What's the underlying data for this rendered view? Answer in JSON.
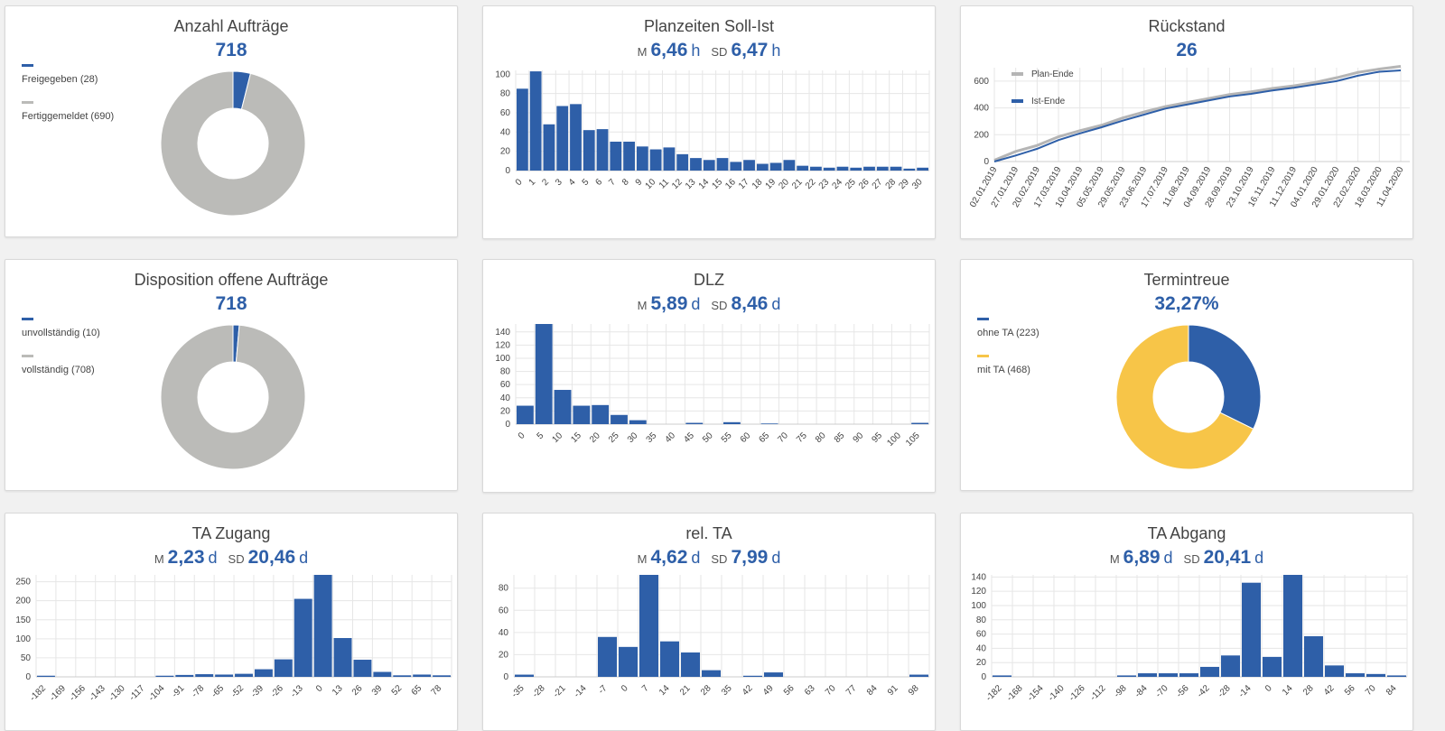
{
  "colors": {
    "blue": "#2e5fa8",
    "grey": "#bbbbb8",
    "grey_line": "#b5b5b5",
    "yellow": "#f7c548"
  },
  "cards": {
    "anzahl": {
      "title": "Anzahl Aufträge",
      "value": "718"
    },
    "planzeiten": {
      "title": "Planzeiten Soll-Ist",
      "m_label": "M",
      "m_value": "6,46",
      "m_unit": "h",
      "sd_label": "SD",
      "sd_value": "6,47",
      "sd_unit": "h"
    },
    "rueckstand": {
      "title": "Rückstand",
      "value": "26"
    },
    "disposition": {
      "title": "Disposition offene Aufträge",
      "value": "718"
    },
    "dlz": {
      "title": "DLZ",
      "m_label": "M",
      "m_value": "5,89",
      "m_unit": "d",
      "sd_label": "SD",
      "sd_value": "8,46",
      "sd_unit": "d"
    },
    "termintreue": {
      "title": "Termintreue",
      "value": "32,27%"
    },
    "ta_zugang": {
      "title": "TA Zugang",
      "m_label": "M",
      "m_value": "2,23",
      "m_unit": "d",
      "sd_label": "SD",
      "sd_value": "20,46",
      "sd_unit": "d"
    },
    "rel_ta": {
      "title": "rel. TA",
      "m_label": "M",
      "m_value": "4,62",
      "m_unit": "d",
      "sd_label": "SD",
      "sd_value": "7,99",
      "sd_unit": "d"
    },
    "ta_abgang": {
      "title": "TA Abgang",
      "m_label": "M",
      "m_value": "6,89",
      "m_unit": "d",
      "sd_label": "SD",
      "sd_value": "20,41",
      "sd_unit": "d"
    }
  },
  "chart_data": [
    {
      "id": "anzahl",
      "type": "pie",
      "donut": true,
      "slices": [
        {
          "label": "Freigegeben (28)",
          "value": 28,
          "color": "#2e5fa8"
        },
        {
          "label": "Fertiggemeldet (690)",
          "value": 690,
          "color": "#bbbbb8"
        }
      ]
    },
    {
      "id": "planzeiten",
      "type": "bar",
      "categories": [
        "0",
        "1",
        "2",
        "3",
        "4",
        "5",
        "6",
        "7",
        "8",
        "9",
        "10",
        "11",
        "12",
        "13",
        "14",
        "15",
        "16",
        "17",
        "18",
        "19",
        "20",
        "21",
        "22",
        "23",
        "24",
        "25",
        "26",
        "27",
        "28",
        "29",
        "30"
      ],
      "values": [
        85,
        103,
        48,
        67,
        69,
        42,
        43,
        30,
        30,
        25,
        22,
        24,
        17,
        13,
        11,
        13,
        9,
        11,
        7,
        8,
        11,
        5,
        4,
        3,
        4,
        3,
        4,
        4,
        4,
        2,
        3
      ],
      "ylim": [
        0,
        104
      ],
      "yticks": [
        0,
        20,
        40,
        60,
        80,
        100
      ]
    },
    {
      "id": "rueckstand",
      "type": "line",
      "x": [
        "02.01.2019",
        "27.01.2019",
        "20.02.2019",
        "17.03.2019",
        "10.04.2019",
        "05.05.2019",
        "29.05.2019",
        "23.06.2019",
        "17.07.2019",
        "11.08.2019",
        "04.09.2019",
        "28.09.2019",
        "23.10.2019",
        "16.11.2019",
        "11.12.2019",
        "04.01.2020",
        "29.01.2020",
        "22.02.2020",
        "18.03.2020",
        "11.04.2020"
      ],
      "series": [
        {
          "name": "Plan-Ende",
          "color": "#b5b5b5",
          "values": [
            10,
            75,
            120,
            185,
            230,
            270,
            325,
            370,
            410,
            440,
            470,
            500,
            520,
            545,
            565,
            590,
            625,
            665,
            690,
            710
          ]
        },
        {
          "name": "Ist-Ende",
          "color": "#2e5fa8",
          "values": [
            0,
            45,
            95,
            160,
            210,
            255,
            305,
            350,
            395,
            425,
            455,
            485,
            505,
            530,
            550,
            575,
            600,
            640,
            670,
            680
          ]
        }
      ],
      "ylim": [
        0,
        700
      ],
      "yticks": [
        0,
        200,
        400,
        600
      ]
    },
    {
      "id": "disposition",
      "type": "pie",
      "donut": true,
      "slices": [
        {
          "label": "unvollständig (10)",
          "value": 10,
          "color": "#2e5fa8"
        },
        {
          "label": "vollständig (708)",
          "value": 708,
          "color": "#bbbbb8"
        }
      ]
    },
    {
      "id": "dlz",
      "type": "bar",
      "categories": [
        "0",
        "5",
        "10",
        "15",
        "20",
        "25",
        "30",
        "35",
        "40",
        "45",
        "50",
        "55",
        "60",
        "65",
        "70",
        "75",
        "80",
        "85",
        "90",
        "95",
        "100",
        "105"
      ],
      "values": [
        28,
        152,
        52,
        28,
        29,
        14,
        6,
        0,
        0,
        2,
        0,
        3,
        0,
        1,
        0,
        0,
        0,
        0,
        0,
        0,
        0,
        2
      ],
      "ylim": [
        0,
        152
      ],
      "yticks": [
        0,
        20,
        40,
        60,
        80,
        100,
        120,
        140
      ]
    },
    {
      "id": "termintreue",
      "type": "pie",
      "donut": true,
      "slices": [
        {
          "label": "ohne TA (223)",
          "value": 223,
          "color": "#2e5fa8"
        },
        {
          "label": "mit TA (468)",
          "value": 468,
          "color": "#f7c548"
        }
      ]
    },
    {
      "id": "ta_zugang",
      "type": "bar",
      "categories": [
        "-182",
        "-169",
        "-156",
        "-143",
        "-130",
        "-117",
        "-104",
        "-91",
        "-78",
        "-65",
        "-52",
        "-39",
        "-26",
        "-13",
        "0",
        "13",
        "26",
        "39",
        "52",
        "65",
        "78"
      ],
      "values": [
        3,
        0,
        0,
        0,
        0,
        0,
        3,
        5,
        7,
        6,
        8,
        20,
        46,
        205,
        268,
        102,
        45,
        13,
        4,
        6,
        4
      ],
      "ylim": [
        0,
        268
      ],
      "yticks": [
        0,
        50,
        100,
        150,
        200,
        250
      ]
    },
    {
      "id": "rel_ta",
      "type": "bar",
      "categories": [
        "-35",
        "-28",
        "-21",
        "-14",
        "-7",
        "0",
        "7",
        "14",
        "21",
        "28",
        "35",
        "42",
        "49",
        "56",
        "63",
        "70",
        "77",
        "84",
        "91",
        "98"
      ],
      "values": [
        2,
        0,
        0,
        0,
        36,
        27,
        92,
        32,
        22,
        6,
        0,
        1,
        4,
        0,
        0,
        0,
        0,
        0,
        0,
        2
      ],
      "ylim": [
        0,
        92
      ],
      "yticks": [
        0,
        20,
        40,
        60,
        80
      ]
    },
    {
      "id": "ta_abgang",
      "type": "bar",
      "categories": [
        "-182",
        "-168",
        "-154",
        "-140",
        "-126",
        "-112",
        "-98",
        "-84",
        "-70",
        "-56",
        "-42",
        "-28",
        "-14",
        "0",
        "14",
        "28",
        "42",
        "56",
        "70",
        "84"
      ],
      "values": [
        2,
        0,
        0,
        0,
        0,
        0,
        2,
        5,
        5,
        5,
        14,
        30,
        132,
        28,
        143,
        57,
        16,
        5,
        4,
        2
      ],
      "ylim": [
        0,
        143
      ],
      "yticks": [
        0,
        20,
        40,
        60,
        80,
        100,
        120,
        140
      ]
    }
  ]
}
